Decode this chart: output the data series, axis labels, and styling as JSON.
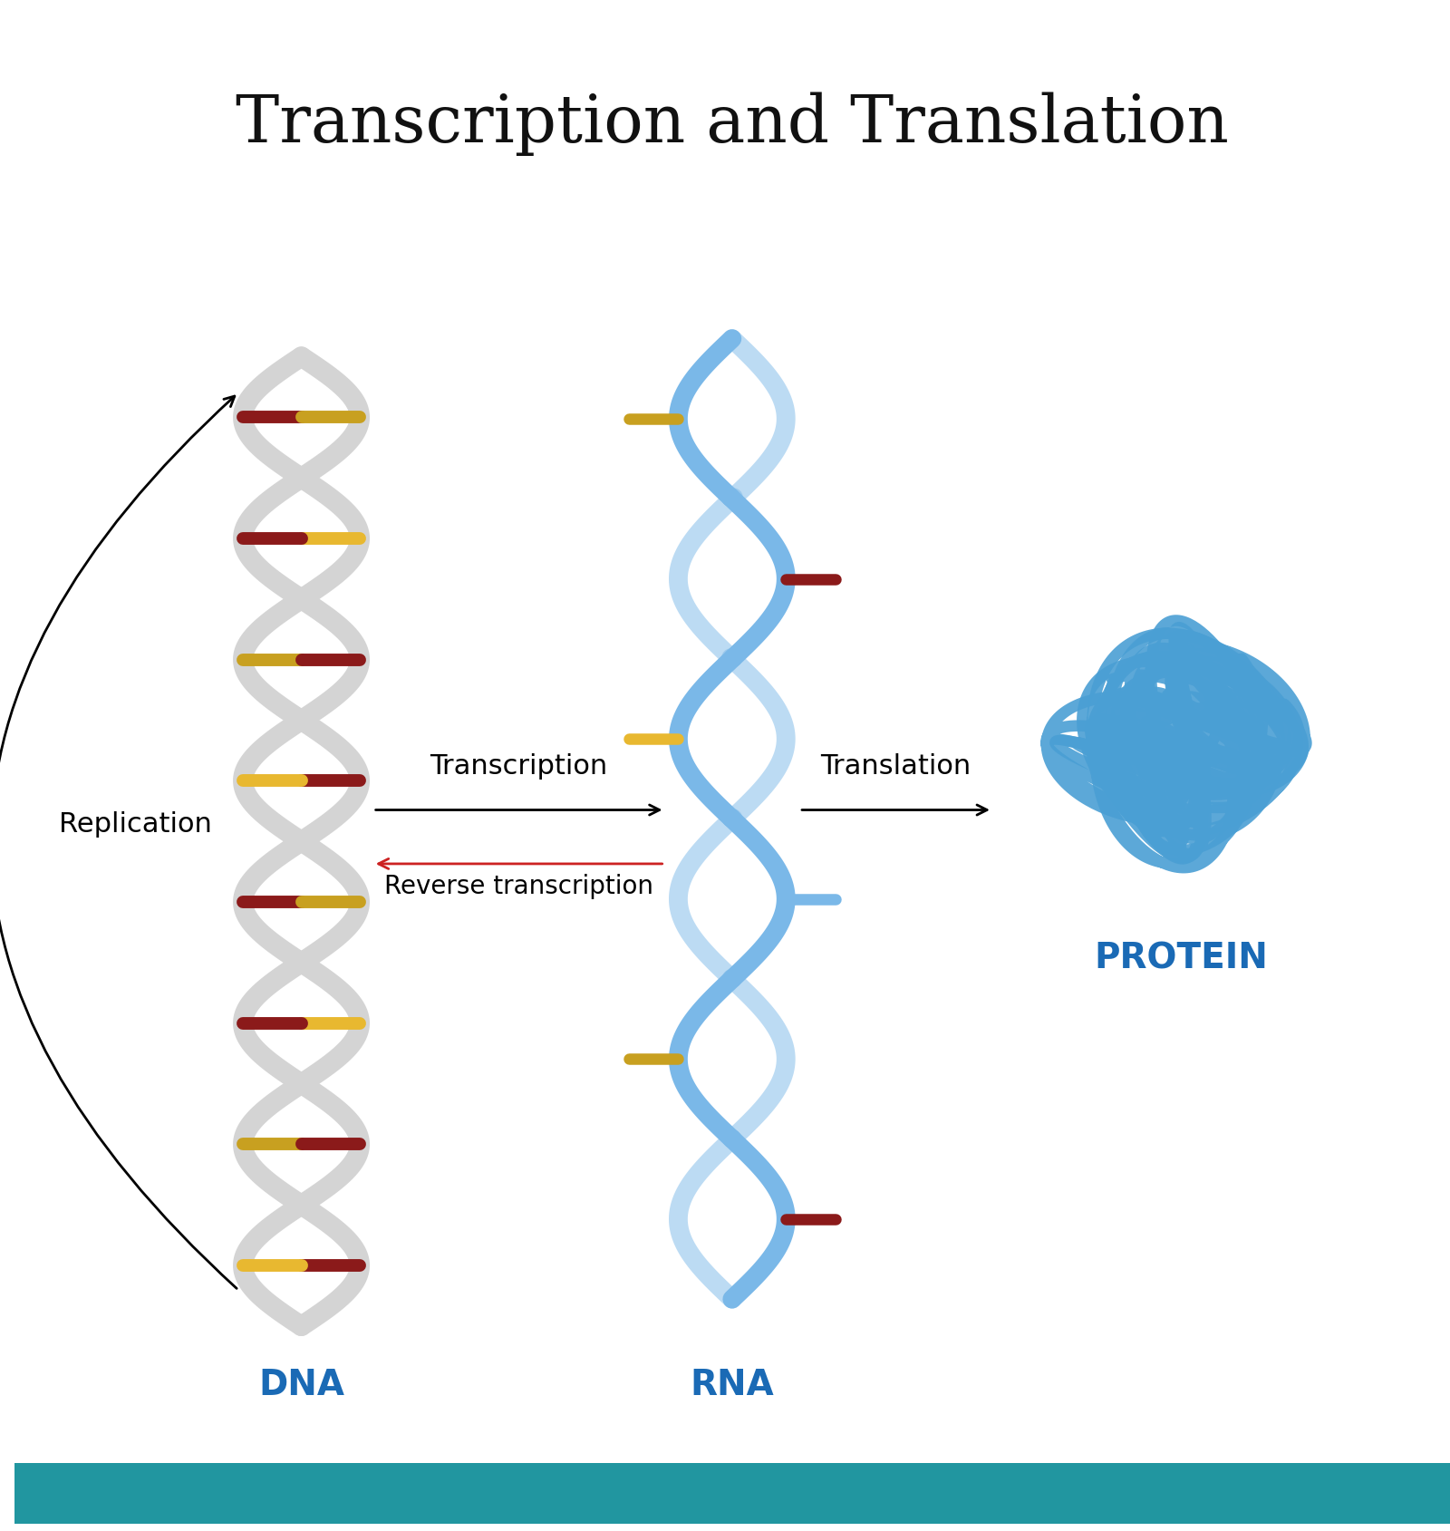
{
  "title": "Transcription and Translation",
  "title_fontsize": 52,
  "title_color": "#111111",
  "bg_color": "#ffffff",
  "dna_label": "DNA",
  "rna_label": "RNA",
  "protein_label": "PROTEIN",
  "label_color": "#1a6ab5",
  "label_fontsize": 28,
  "replication_label": "Replication",
  "transcription_label": "Transcription",
  "reverse_transcription_label": "Reverse transcription",
  "translation_label": "Translation",
  "arrow_label_fontsize": 22,
  "dna_strand_color": "#d4d4d4",
  "rna_strand_color": "#7ab8e8",
  "protein_color": "#4a9fd4",
  "dna_base_colors": [
    "#8b1a1a",
    "#c8a020",
    "#e8b830",
    "#8b1a1a"
  ],
  "rna_base_colors": [
    "#8b1a1a",
    "#c8a020",
    "#7ab8e8",
    "#e8b830"
  ],
  "bottom_bar_color": "#2196a0",
  "bottom_bar_height": 0.04
}
